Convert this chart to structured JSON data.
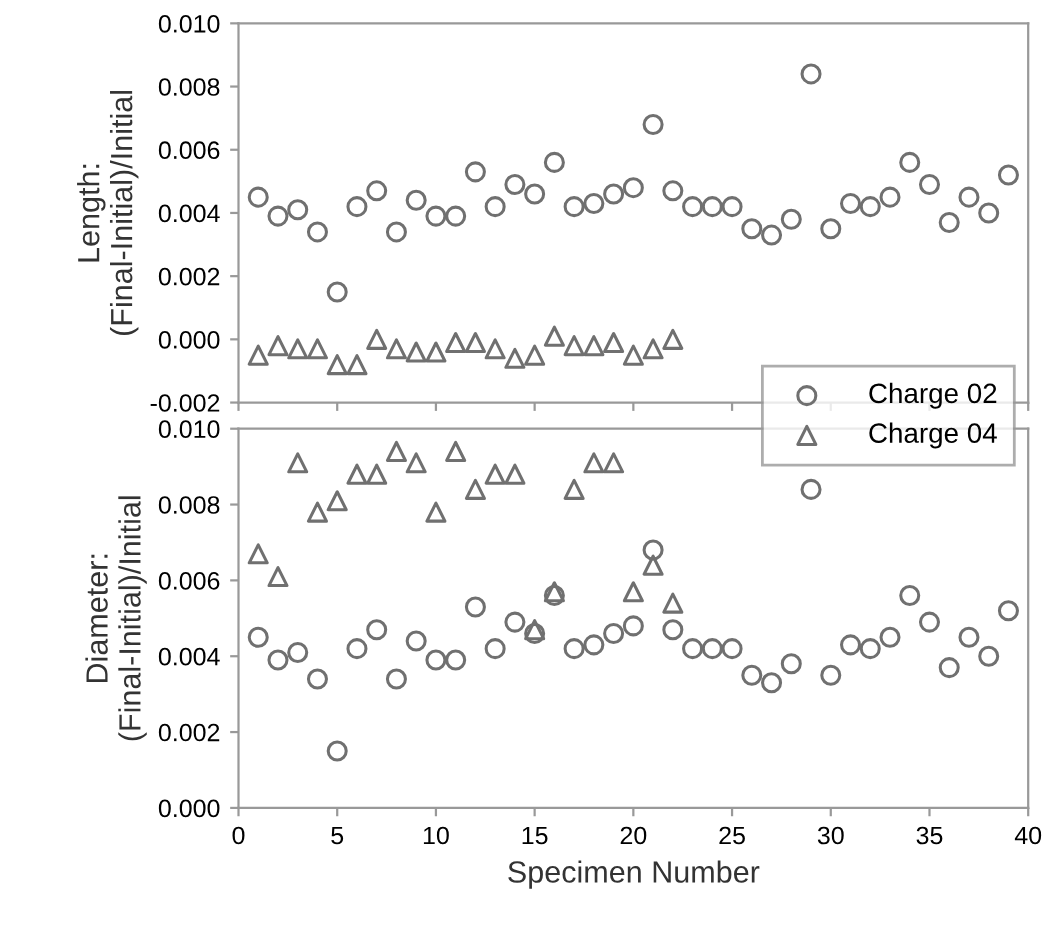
{
  "chart_data": [
    {
      "type": "scatter",
      "ylabel": "Length:\n(Final-Initial)/Initial",
      "xlim": [
        0,
        40
      ],
      "xticks": [
        0,
        5,
        10,
        15,
        20,
        25,
        30,
        35,
        40
      ],
      "ylim": [
        -0.002,
        0.01
      ],
      "yticks": [
        {
          "value": -0.002,
          "label": "-0.002"
        },
        {
          "value": 0,
          "label": "0.000"
        },
        {
          "value": 0.002,
          "label": "0.002"
        },
        {
          "value": 0.004,
          "label": "0.004"
        },
        {
          "value": 0.006,
          "label": "0.006"
        },
        {
          "value": 0.008,
          "label": "0.008"
        },
        {
          "value": 0.01,
          "label": "0.010"
        }
      ],
      "tick_labels": "y",
      "grid": false,
      "legend": "right",
      "series": [
        {
          "name": "Charge 02",
          "color": "#707070",
          "marker": "circle",
          "x": [
            1,
            2,
            3,
            4,
            5,
            6,
            7,
            8,
            9,
            10,
            11,
            12,
            13,
            14,
            15,
            16,
            17,
            18,
            19,
            20,
            21,
            22,
            23,
            24,
            25,
            26,
            27,
            28,
            29,
            30,
            31,
            32,
            33,
            34,
            35,
            36,
            37,
            38,
            39
          ],
          "values": [
            0.0045,
            0.0039,
            0.0041,
            0.0034,
            0.0015,
            0.0042,
            0.0047,
            0.0034,
            0.0044,
            0.0039,
            0.0039,
            0.0053,
            0.0042,
            0.0049,
            0.0046,
            0.0056,
            0.0042,
            0.0043,
            0.0046,
            0.0048,
            0.0068,
            0.0047,
            0.0042,
            0.0042,
            0.0042,
            0.0035,
            0.0033,
            0.0038,
            0.0084,
            0.0035,
            0.0043,
            0.0042,
            0.0045,
            0.0056,
            0.0049,
            0.0037,
            0.0045,
            0.004,
            0.0052
          ]
        },
        {
          "name": "Charge 04",
          "color": "#707070",
          "marker": "triangle",
          "x": [
            1,
            2,
            3,
            4,
            5,
            6,
            7,
            8,
            9,
            10,
            11,
            12,
            13,
            14,
            15,
            16,
            17,
            18,
            19,
            20,
            21,
            22
          ],
          "values": [
            -0.0005,
            -0.0002,
            -0.0003,
            -0.0003,
            -0.0008,
            -0.0008,
            0.0,
            -0.0003,
            -0.0004,
            -0.0004,
            -0.0001,
            -0.0001,
            -0.0003,
            -0.0006,
            -0.0005,
            0.0001,
            -0.0002,
            -0.0002,
            -0.0001,
            -0.0005,
            -0.0003,
            0.0
          ]
        }
      ]
    },
    {
      "type": "scatter",
      "ylabel": "Diameter:\n(Final-Initial)/Initial",
      "xlabel": "Specimen Number",
      "xlim": [
        0,
        40
      ],
      "xticks": [
        0,
        5,
        10,
        15,
        20,
        25,
        30,
        35,
        40
      ],
      "ylim": [
        0,
        0.01
      ],
      "yticks": [
        {
          "value": 0,
          "label": "0.000"
        },
        {
          "value": 0.002,
          "label": "0.002"
        },
        {
          "value": 0.004,
          "label": "0.004"
        },
        {
          "value": 0.006,
          "label": "0.006"
        },
        {
          "value": 0.008,
          "label": "0.008"
        },
        {
          "value": 0.01,
          "label": "0.010"
        }
      ],
      "grid": false,
      "series": [
        {
          "color": "#707070",
          "marker": "circle",
          "x": [
            1,
            2,
            3,
            4,
            5,
            6,
            7,
            8,
            9,
            10,
            11,
            12,
            13,
            14,
            15,
            16,
            17,
            18,
            19,
            20,
            21,
            22,
            23,
            24,
            25,
            26,
            27,
            28,
            29,
            30,
            31,
            32,
            33,
            34,
            35,
            36,
            37,
            38,
            39
          ],
          "values": [
            0.0045,
            0.0039,
            0.0041,
            0.0034,
            0.0015,
            0.0042,
            0.0047,
            0.0034,
            0.0044,
            0.0039,
            0.0039,
            0.0053,
            0.0042,
            0.0049,
            0.0046,
            0.0056,
            0.0042,
            0.0043,
            0.0046,
            0.0048,
            0.0068,
            0.0047,
            0.0042,
            0.0042,
            0.0042,
            0.0035,
            0.0033,
            0.0038,
            0.0084,
            0.0035,
            0.0043,
            0.0042,
            0.0045,
            0.0056,
            0.0049,
            0.0037,
            0.0045,
            0.004,
            0.0052
          ]
        },
        {
          "color": "#707070",
          "marker": "triangle",
          "x": [
            1,
            2,
            3,
            4,
            5,
            6,
            7,
            8,
            9,
            10,
            11,
            12,
            13,
            14,
            15,
            16,
            17,
            18,
            19,
            20,
            21,
            22
          ],
          "values": [
            0.0067,
            0.0061,
            0.0091,
            0.0078,
            0.0081,
            0.0088,
            0.0088,
            0.0094,
            0.0091,
            0.0078,
            0.0094,
            0.0084,
            0.0088,
            0.0088,
            0.0047,
            0.0057,
            0.0084,
            0.0091,
            0.0091,
            0.0057,
            0.0064,
            0.0054
          ]
        }
      ]
    }
  ]
}
